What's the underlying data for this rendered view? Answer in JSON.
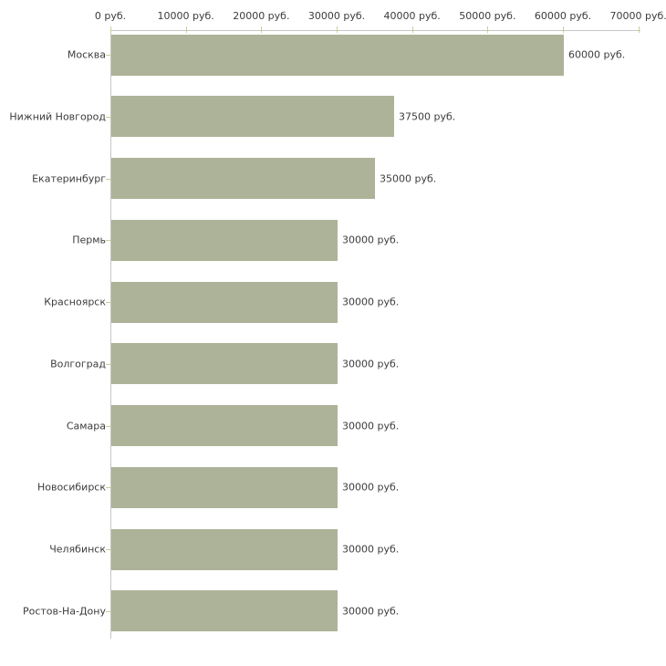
{
  "chart_data": {
    "type": "bar",
    "orientation": "horizontal",
    "title": "",
    "xlabel": "",
    "ylabel": "",
    "xlim": [
      0,
      70000
    ],
    "grid": false,
    "legend": false,
    "x_tick_values": [
      0,
      10000,
      20000,
      30000,
      40000,
      50000,
      60000,
      70000
    ],
    "x_tick_labels": [
      "0 руб.",
      "10000 руб.",
      "20000 руб.",
      "30000 руб.",
      "40000 руб.",
      "50000 руб.",
      "60000 руб.",
      "70000 руб."
    ],
    "categories": [
      "Москва",
      "Нижний Новгород",
      "Екатеринбург",
      "Пермь",
      "Красноярск",
      "Волгоград",
      "Самара",
      "Новосибирск",
      "Челябинск",
      "Ростов-На-Дону"
    ],
    "values": [
      60000,
      37500,
      35000,
      30000,
      30000,
      30000,
      30000,
      30000,
      30000,
      30000
    ],
    "value_labels": [
      "60000 руб.",
      "37500 руб.",
      "35000 руб.",
      "30000 руб.",
      "30000 руб.",
      "30000 руб.",
      "30000 руб.",
      "30000 руб.",
      "30000 руб.",
      "30000 руб."
    ],
    "colors": {
      "bar": "#adb398",
      "axis_line": "#c6c6c6",
      "tick_mark": "#cccc99",
      "label_text": "#3c3c3c",
      "background": "#ffffff"
    }
  }
}
